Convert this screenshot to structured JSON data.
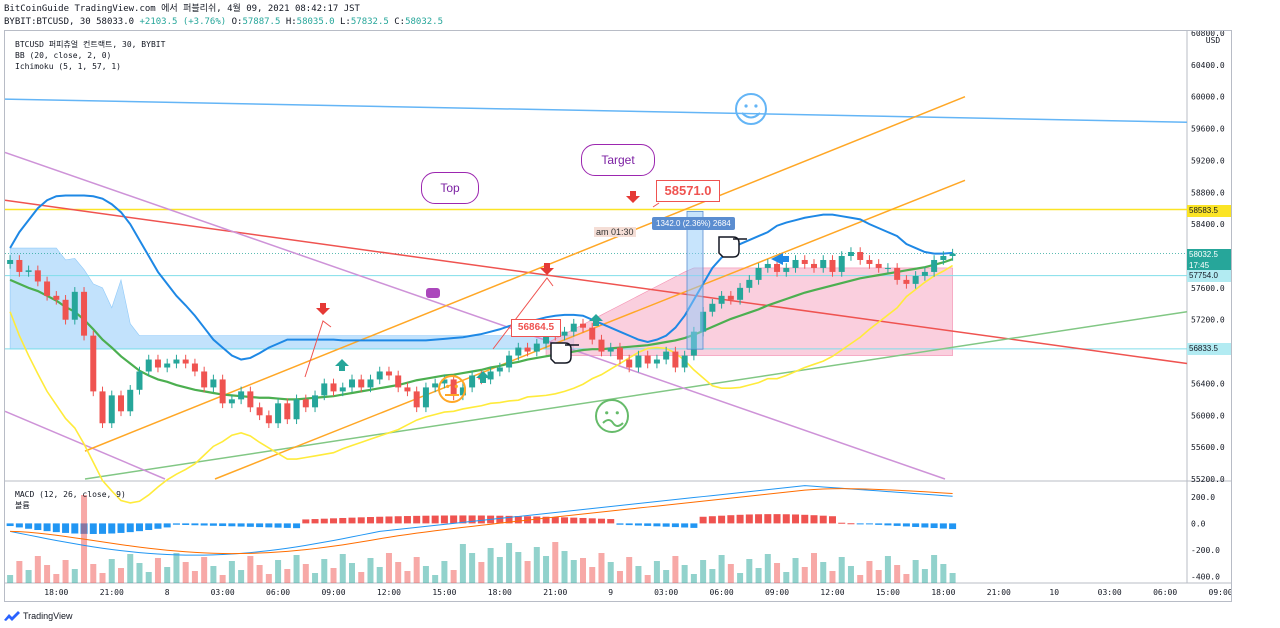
{
  "header": {
    "line1": "BitCoinGuide TradingView.com 에서 퍼블리쉬, 4월 09, 2021 08:42:17 JST",
    "line2_symbol": "BYBIT:BTCUSD, 30",
    "line2_last": "58033.0",
    "line2_change": "+2103.5 (+3.76%)",
    "o_label": "O:",
    "o": "57887.5",
    "h_label": "H:",
    "h": "58035.0",
    "l_label": "L:",
    "l": "57832.5",
    "c_label": "C:",
    "c": "58032.5"
  },
  "legend": {
    "symbol": "BTCUSD 퍼피츄얼 컨트랙트, 30, BYBIT",
    "bb": "BB (20, close, 2, 0)",
    "ichimoku": "Ichimoku (5, 1, 57, 1)",
    "macd": "MACD (12, 26, close, 9)",
    "volume": "볼륨"
  },
  "annotations": {
    "top_bubble": "Top",
    "target_bubble": "Target",
    "target_price": "58571.0",
    "entry_price": "56864.5",
    "time_note": "am 01:30",
    "measure": "1342.0 (2.36%) 2684"
  },
  "price_tags": {
    "yellow": "58583.5",
    "last": "58032.5",
    "countdown": "17:45",
    "cyan_upper": "57754.0",
    "cyan_lower": "56833.5"
  },
  "footer": {
    "brand": "TradingView"
  },
  "colors": {
    "up": "#26a69a",
    "down": "#ef5350",
    "bb": "#1e88e5",
    "tenkan": "#ffeb3b",
    "kijun": "#4caf50",
    "cloud_bull": "#90caf9",
    "cloud_bear": "#f8bbd0",
    "trend_orange": "#ffa726",
    "trend_red": "#ef5350",
    "trend_blue": "#64b5f6",
    "trend_green": "#81c784",
    "trend_purple": "#ce93d8",
    "level_yellow": "#fbe425",
    "level_cyan": "#80deea"
  },
  "chart_data": {
    "type": "candlestick",
    "price_axis": {
      "ticks": [
        "60800.0",
        "60400.0",
        "60000.0",
        "59600.0",
        "59200.0",
        "58800.0",
        "58400.0",
        "58000.0",
        "57600.0",
        "57200.0",
        "56800.0",
        "56400.0",
        "56000.0",
        "55600.0",
        "55200.0"
      ],
      "ylim": [
        55200,
        60800
      ],
      "currency": "USD"
    },
    "macd_axis": {
      "ticks": [
        "200.0",
        "0.0",
        "-200.0",
        "-400.0"
      ],
      "ylim": [
        -450,
        320
      ]
    },
    "time_axis": [
      "18:00",
      "21:00",
      "8",
      "03:00",
      "06:00",
      "09:00",
      "12:00",
      "15:00",
      "18:00",
      "21:00",
      "9",
      "03:00",
      "06:00",
      "09:00",
      "12:00",
      "15:00",
      "18:00",
      "21:00",
      "10",
      "03:00",
      "06:00",
      "09:00"
    ],
    "bars_per_tick": 6,
    "first_tick_offset_bars": 5.5,
    "candles_close": [
      57950,
      57800,
      57820,
      57680,
      57500,
      57450,
      57200,
      57550,
      57000,
      56300,
      55900,
      56250,
      56050,
      56320,
      56550,
      56700,
      56600,
      56650,
      56700,
      56650,
      56550,
      56350,
      56450,
      56150,
      56200,
      56300,
      56100,
      56000,
      55900,
      56150,
      55950,
      56200,
      56100,
      56250,
      56400,
      56300,
      56350,
      56450,
      56350,
      56450,
      56550,
      56500,
      56350,
      56300,
      56100,
      56350,
      56400,
      56450,
      56250,
      56350,
      56500,
      56450,
      56550,
      56600,
      56750,
      56850,
      56800,
      56900,
      57050,
      57000,
      57050,
      57150,
      57100,
      56950,
      56800,
      56850,
      56700,
      56600,
      56750,
      56650,
      56700,
      56800,
      56600,
      56750,
      57050,
      57300,
      57400,
      57500,
      57450,
      57600,
      57700,
      57850,
      57900,
      57800,
      57850,
      57950,
      57900,
      57850,
      57950,
      57800,
      58000,
      58050,
      57950,
      57900,
      57850,
      57850,
      57700,
      57650,
      57750,
      57800,
      57950,
      58000,
      58030
    ],
    "bb_mid": [
      57700,
      57650,
      57600,
      57560,
      57500,
      57440,
      57360,
      57300,
      57200,
      57080,
      56950,
      56850,
      56740,
      56650,
      56560,
      56500,
      56450,
      56420,
      56380,
      56350,
      56320,
      56300,
      56280,
      56260,
      56250,
      56240,
      56230,
      56220,
      56220,
      56210,
      56200,
      56200,
      56210,
      56220,
      56230,
      56240,
      56260,
      56280,
      56300,
      56320,
      56340,
      56360,
      56380,
      56410,
      56440,
      56460,
      56480,
      56500,
      56510,
      56530,
      56550,
      56570,
      56600,
      56620,
      56650,
      56670,
      56700,
      56720,
      56740,
      56760,
      56780,
      56800,
      56820,
      56830,
      56830,
      56840,
      56850,
      56860,
      56870,
      56880,
      56900,
      56920,
      56940,
      56970,
      57010,
      57060,
      57110,
      57160,
      57210,
      57250,
      57290,
      57330,
      57380,
      57420,
      57460,
      57500,
      57540,
      57570,
      57600,
      57630,
      57660,
      57690,
      57720,
      57740,
      57760,
      57780,
      57800,
      57820,
      57840,
      57860,
      57890,
      57920,
      57960
    ],
    "bb_upper": [
      58100,
      58300,
      58450,
      58600,
      58700,
      58750,
      58760,
      58760,
      58760,
      58750,
      58720,
      58650,
      58550,
      58400,
      58200,
      58000,
      57800,
      57650,
      57500,
      57380,
      57250,
      57100,
      56950,
      56850,
      56750,
      56700,
      56720,
      56780,
      56850,
      56900,
      56950,
      56950,
      56950,
      56950,
      56950,
      56950,
      56940,
      56940,
      56940,
      56940,
      56940,
      56940,
      56940,
      56940,
      56940,
      56940,
      56950,
      56960,
      56970,
      56980,
      57000,
      57020,
      57050,
      57080,
      57120,
      57150,
      57170,
      57200,
      57230,
      57250,
      57260,
      57260,
      57250,
      57200,
      57150,
      57100,
      57050,
      57000,
      56950,
      56920,
      56950,
      57000,
      57100,
      57250,
      57450,
      57650,
      57850,
      57980,
      58080,
      58150,
      58200,
      58250,
      58300,
      58380,
      58420,
      58450,
      58480,
      58500,
      58520,
      58520,
      58500,
      58480,
      58460,
      58400,
      58350,
      58300,
      58250,
      58150,
      58100,
      58050,
      58030,
      58030,
      58040
    ],
    "bb_lower": [
      57300,
      57000,
      56750,
      56520,
      56300,
      56130,
      55960,
      55840,
      55640,
      55410,
      55180,
      55050,
      54930,
      54900,
      54920,
      55000,
      55100,
      55190,
      55260,
      55320,
      55390,
      55500,
      55610,
      55670,
      55750,
      55780,
      55740,
      55660,
      55590,
      55520,
      55450,
      55450,
      55470,
      55490,
      55510,
      55530,
      55580,
      55620,
      55660,
      55700,
      55740,
      55780,
      55820,
      55880,
      55940,
      55980,
      56010,
      56040,
      56050,
      56080,
      56100,
      56120,
      56150,
      56160,
      56180,
      56190,
      56230,
      56240,
      56250,
      56270,
      56300,
      56340,
      56390,
      56460,
      56510,
      56580,
      56650,
      56720,
      56790,
      56840,
      56850,
      56840,
      56780,
      56690,
      56570,
      56470,
      56370,
      56340,
      56340,
      56350,
      56380,
      56410,
      56460,
      56460,
      56500,
      56550,
      56600,
      56640,
      56680,
      56740,
      56820,
      56900,
      56980,
      57080,
      57170,
      57260,
      57350,
      57490,
      57580,
      57670,
      57750,
      57810,
      57880
    ]
  }
}
